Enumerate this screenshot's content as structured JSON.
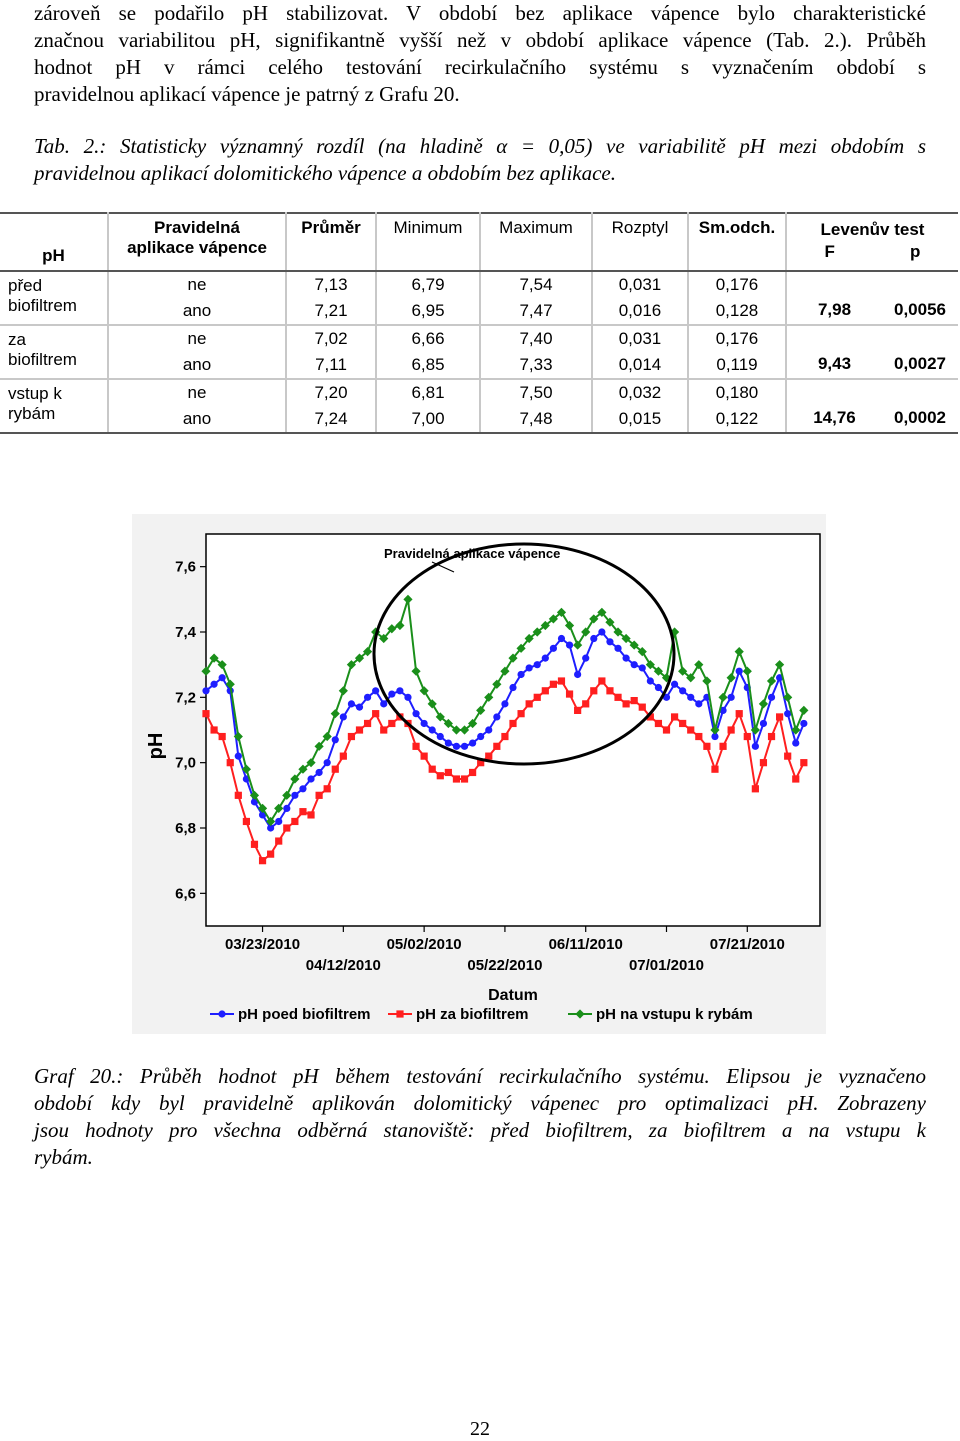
{
  "intro_lines": [
    "zároveň se podařilo pH stabilizovat. V období bez aplikace vápence bylo charakteristické",
    "značnou variabilitou pH, signifikantně vyšší než v období aplikace vápence (Tab. 2.). Průběh",
    "hodnot pH v rámci celého testování recirkulačního systému s vyznačením období s",
    "pravidelnou aplikací vápence je patrný z Grafu 20."
  ],
  "table_caption_lines": [
    "Tab. 2.: Statisticky významný rozdíl (na hladině α = 0,05) ve variabilitě pH mezi obdobím s",
    "pravidelnou aplikací dolomitického vápence  a obdobím bez aplikace."
  ],
  "table": {
    "headers": {
      "ph": "pH",
      "pravidelna_1": "Pravidelná",
      "pravidelna_2": "aplikace vápence",
      "prumer": "Průměr",
      "minimum": "Minimum",
      "maximum": "Maximum",
      "rozptyl": "Rozptyl",
      "smodch": "Sm.odch.",
      "levene": "Levenův test",
      "f": "F",
      "p": "p"
    },
    "groups": [
      {
        "label_1": "před",
        "label_2": "biofiltrem",
        "rows": [
          {
            "aplikace": "ne",
            "prumer": "7,13",
            "min": "6,79",
            "max": "7,54",
            "rozptyl": "0,031",
            "smodch": "0,176"
          },
          {
            "aplikace": "ano",
            "prumer": "7,21",
            "min": "6,95",
            "max": "7,47",
            "rozptyl": "0,016",
            "smodch": "0,128"
          }
        ],
        "f": "7,98",
        "p": "0,0056"
      },
      {
        "label_1": "za",
        "label_2": "biofiltrem",
        "rows": [
          {
            "aplikace": "ne",
            "prumer": "7,02",
            "min": "6,66",
            "max": "7,40",
            "rozptyl": "0,031",
            "smodch": "0,176"
          },
          {
            "aplikace": "ano",
            "prumer": "7,11",
            "min": "6,85",
            "max": "7,33",
            "rozptyl": "0,014",
            "smodch": "0,119"
          }
        ],
        "f": "9,43",
        "p": "0,0027"
      },
      {
        "label_1": "vstup k",
        "label_2": "rybám",
        "rows": [
          {
            "aplikace": "ne",
            "prumer": "7,20",
            "min": "6,81",
            "max": "7,50",
            "rozptyl": "0,032",
            "smodch": "0,180"
          },
          {
            "aplikace": "ano",
            "prumer": "7,24",
            "min": "7,00",
            "max": "7,48",
            "rozptyl": "0,015",
            "smodch": "0,122"
          }
        ],
        "f": "14,76",
        "p": "0,0002"
      }
    ]
  },
  "chart_data": {
    "type": "line",
    "ylabel": "pH",
    "xlabel": "Datum",
    "annotation": "Pravidelná aplikace vápence",
    "ylim": [
      6.5,
      7.7
    ],
    "yticks": [
      "7,6",
      "7,4",
      "7,2",
      "7,0",
      "6,8",
      "6,6"
    ],
    "ytick_values": [
      7.6,
      7.4,
      7.2,
      7.0,
      6.8,
      6.6
    ],
    "xlim": [
      "2010-03-09",
      "2010-08-08"
    ],
    "xticks_upper": [
      "03/23/2010",
      "05/02/2010",
      "06/11/2010",
      "07/21/2010"
    ],
    "xticks_lower": [
      "04/12/2010",
      "05/22/2010",
      "07/01/2010"
    ],
    "xtick_upper_dates": [
      "2010-03-23",
      "2010-05-02",
      "2010-06-11",
      "2010-07-21"
    ],
    "xtick_lower_dates": [
      "2010-04-12",
      "2010-05-22",
      "2010-07-01"
    ],
    "highlight_period": [
      "2010-04-27",
      "2010-07-04"
    ],
    "series": [
      {
        "name": "pH poed biofiltrem",
        "color": "#1e1eff",
        "marker": "circle",
        "x": [
          "2010-03-09",
          "2010-03-11",
          "2010-03-13",
          "2010-03-15",
          "2010-03-17",
          "2010-03-19",
          "2010-03-21",
          "2010-03-23",
          "2010-03-25",
          "2010-03-27",
          "2010-03-29",
          "2010-03-31",
          "2010-04-02",
          "2010-04-04",
          "2010-04-06",
          "2010-04-08",
          "2010-04-10",
          "2010-04-12",
          "2010-04-14",
          "2010-04-16",
          "2010-04-18",
          "2010-04-20",
          "2010-04-22",
          "2010-04-24",
          "2010-04-26",
          "2010-04-28",
          "2010-04-30",
          "2010-05-02",
          "2010-05-04",
          "2010-05-06",
          "2010-05-08",
          "2010-05-10",
          "2010-05-12",
          "2010-05-14",
          "2010-05-16",
          "2010-05-18",
          "2010-05-20",
          "2010-05-22",
          "2010-05-24",
          "2010-05-26",
          "2010-05-28",
          "2010-05-30",
          "2010-06-01",
          "2010-06-03",
          "2010-06-05",
          "2010-06-07",
          "2010-06-09",
          "2010-06-11",
          "2010-06-13",
          "2010-06-15",
          "2010-06-17",
          "2010-06-19",
          "2010-06-21",
          "2010-06-23",
          "2010-06-25",
          "2010-06-27",
          "2010-06-29",
          "2010-07-01",
          "2010-07-03",
          "2010-07-05",
          "2010-07-07",
          "2010-07-09",
          "2010-07-11",
          "2010-07-13",
          "2010-07-15",
          "2010-07-17",
          "2010-07-19",
          "2010-07-21",
          "2010-07-23",
          "2010-07-25",
          "2010-07-27",
          "2010-07-29",
          "2010-07-31",
          "2010-08-02",
          "2010-08-04"
        ],
        "values": [
          7.22,
          7.24,
          7.26,
          7.22,
          7.02,
          6.95,
          6.88,
          6.84,
          6.8,
          6.82,
          6.86,
          6.9,
          6.92,
          6.95,
          6.97,
          7.0,
          7.07,
          7.14,
          7.18,
          7.17,
          7.2,
          7.22,
          7.18,
          7.21,
          7.22,
          7.2,
          7.15,
          7.12,
          7.1,
          7.08,
          7.06,
          7.05,
          7.05,
          7.06,
          7.08,
          7.1,
          7.14,
          7.18,
          7.23,
          7.27,
          7.29,
          7.3,
          7.32,
          7.35,
          7.38,
          7.36,
          7.27,
          7.32,
          7.38,
          7.4,
          7.37,
          7.35,
          7.32,
          7.3,
          7.29,
          7.25,
          7.23,
          7.2,
          7.24,
          7.22,
          7.2,
          7.18,
          7.2,
          7.08,
          7.16,
          7.2,
          7.28,
          7.23,
          7.05,
          7.12,
          7.2,
          7.26,
          7.15,
          7.06,
          7.12
        ]
      },
      {
        "name": "pH za biofiltrem",
        "color": "#ff1f1f",
        "marker": "square",
        "x": [
          "2010-03-09",
          "2010-03-11",
          "2010-03-13",
          "2010-03-15",
          "2010-03-17",
          "2010-03-19",
          "2010-03-21",
          "2010-03-23",
          "2010-03-25",
          "2010-03-27",
          "2010-03-29",
          "2010-03-31",
          "2010-04-02",
          "2010-04-04",
          "2010-04-06",
          "2010-04-08",
          "2010-04-10",
          "2010-04-12",
          "2010-04-14",
          "2010-04-16",
          "2010-04-18",
          "2010-04-20",
          "2010-04-22",
          "2010-04-24",
          "2010-04-26",
          "2010-04-28",
          "2010-04-30",
          "2010-05-02",
          "2010-05-04",
          "2010-05-06",
          "2010-05-08",
          "2010-05-10",
          "2010-05-12",
          "2010-05-14",
          "2010-05-16",
          "2010-05-18",
          "2010-05-20",
          "2010-05-22",
          "2010-05-24",
          "2010-05-26",
          "2010-05-28",
          "2010-05-30",
          "2010-06-01",
          "2010-06-03",
          "2010-06-05",
          "2010-06-07",
          "2010-06-09",
          "2010-06-11",
          "2010-06-13",
          "2010-06-15",
          "2010-06-17",
          "2010-06-19",
          "2010-06-21",
          "2010-06-23",
          "2010-06-25",
          "2010-06-27",
          "2010-06-29",
          "2010-07-01",
          "2010-07-03",
          "2010-07-05",
          "2010-07-07",
          "2010-07-09",
          "2010-07-11",
          "2010-07-13",
          "2010-07-15",
          "2010-07-17",
          "2010-07-19",
          "2010-07-21",
          "2010-07-23",
          "2010-07-25",
          "2010-07-27",
          "2010-07-29",
          "2010-07-31",
          "2010-08-02",
          "2010-08-04"
        ],
        "values": [
          7.15,
          7.1,
          7.08,
          7.0,
          6.9,
          6.82,
          6.75,
          6.7,
          6.72,
          6.76,
          6.8,
          6.82,
          6.85,
          6.84,
          6.9,
          6.92,
          6.98,
          7.02,
          7.08,
          7.1,
          7.12,
          7.15,
          7.1,
          7.12,
          7.14,
          7.12,
          7.05,
          7.02,
          6.98,
          6.96,
          6.97,
          6.95,
          6.95,
          6.97,
          7.0,
          7.02,
          7.05,
          7.08,
          7.12,
          7.15,
          7.18,
          7.2,
          7.22,
          7.24,
          7.25,
          7.21,
          7.16,
          7.18,
          7.22,
          7.25,
          7.22,
          7.2,
          7.18,
          7.19,
          7.17,
          7.14,
          7.12,
          7.1,
          7.14,
          7.12,
          7.1,
          7.08,
          7.05,
          6.98,
          7.05,
          7.1,
          7.15,
          7.08,
          6.92,
          7.0,
          7.08,
          7.14,
          7.02,
          6.95,
          7.0
        ]
      },
      {
        "name": "pH na vstupu k rybám",
        "color": "#1a8f1a",
        "marker": "diamond",
        "x": [
          "2010-03-09",
          "2010-03-11",
          "2010-03-13",
          "2010-03-15",
          "2010-03-17",
          "2010-03-19",
          "2010-03-21",
          "2010-03-23",
          "2010-03-25",
          "2010-03-27",
          "2010-03-29",
          "2010-03-31",
          "2010-04-02",
          "2010-04-04",
          "2010-04-06",
          "2010-04-08",
          "2010-04-10",
          "2010-04-12",
          "2010-04-14",
          "2010-04-16",
          "2010-04-18",
          "2010-04-20",
          "2010-04-22",
          "2010-04-24",
          "2010-04-26",
          "2010-04-28",
          "2010-04-30",
          "2010-05-02",
          "2010-05-04",
          "2010-05-06",
          "2010-05-08",
          "2010-05-10",
          "2010-05-12",
          "2010-05-14",
          "2010-05-16",
          "2010-05-18",
          "2010-05-20",
          "2010-05-22",
          "2010-05-24",
          "2010-05-26",
          "2010-05-28",
          "2010-05-30",
          "2010-06-01",
          "2010-06-03",
          "2010-06-05",
          "2010-06-07",
          "2010-06-09",
          "2010-06-11",
          "2010-06-13",
          "2010-06-15",
          "2010-06-17",
          "2010-06-19",
          "2010-06-21",
          "2010-06-23",
          "2010-06-25",
          "2010-06-27",
          "2010-06-29",
          "2010-07-01",
          "2010-07-03",
          "2010-07-05",
          "2010-07-07",
          "2010-07-09",
          "2010-07-11",
          "2010-07-13",
          "2010-07-15",
          "2010-07-17",
          "2010-07-19",
          "2010-07-21",
          "2010-07-23",
          "2010-07-25",
          "2010-07-27",
          "2010-07-29",
          "2010-07-31",
          "2010-08-02",
          "2010-08-04"
        ],
        "values": [
          7.28,
          7.32,
          7.3,
          7.24,
          7.08,
          6.98,
          6.9,
          6.86,
          6.82,
          6.86,
          6.9,
          6.95,
          6.98,
          7.0,
          7.05,
          7.08,
          7.15,
          7.22,
          7.3,
          7.32,
          7.34,
          7.4,
          7.38,
          7.41,
          7.42,
          7.5,
          7.28,
          7.22,
          7.18,
          7.14,
          7.12,
          7.1,
          7.1,
          7.12,
          7.16,
          7.2,
          7.24,
          7.28,
          7.32,
          7.35,
          7.38,
          7.4,
          7.42,
          7.44,
          7.46,
          7.42,
          7.36,
          7.4,
          7.44,
          7.46,
          7.43,
          7.4,
          7.38,
          7.36,
          7.34,
          7.3,
          7.28,
          7.26,
          7.4,
          7.28,
          7.26,
          7.3,
          7.25,
          7.1,
          7.2,
          7.26,
          7.34,
          7.28,
          7.1,
          7.18,
          7.25,
          7.3,
          7.2,
          7.1,
          7.16
        ]
      }
    ]
  },
  "graph_caption_lines": [
    "Graf 20.: Průběh hodnot pH během testování recirkulačního systému. Elipsou je vyznačeno",
    "období kdy byl pravidelně aplikován dolomitický vápenec pro optimalizaci pH. Zobrazeny",
    "jsou hodnoty pro všechna odběrná stanoviště: před biofiltrem, za biofiltrem a na vstupu k",
    "rybám."
  ],
  "page_number": "22"
}
